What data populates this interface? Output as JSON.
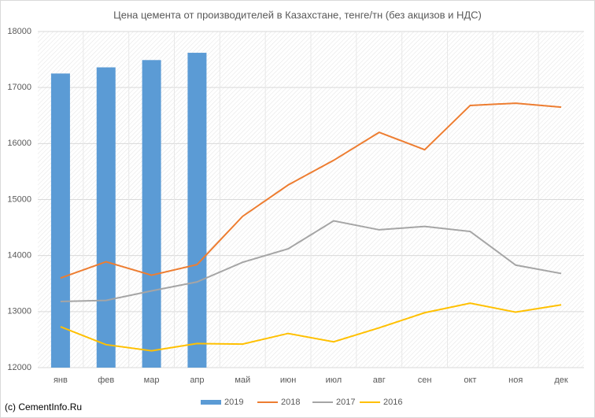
{
  "chart_data": {
    "type": "combo",
    "title": "Цена цемента от производителей в Казахстане, тенге/тн (без акцизов и НДС)",
    "annotation": "(c) CementInfo.Ru",
    "categories": [
      "янв",
      "фев",
      "мар",
      "апр",
      "май",
      "июн",
      "июл",
      "авг",
      "сен",
      "окт",
      "ноя",
      "дек"
    ],
    "series": [
      {
        "name": "2019",
        "type": "bar",
        "color": "#5b9bd5",
        "values": [
          17250,
          17360,
          17490,
          17620,
          null,
          null,
          null,
          null,
          null,
          null,
          null,
          null
        ]
      },
      {
        "name": "2018",
        "type": "line",
        "color": "#ed7d31",
        "values": [
          13600,
          13890,
          13650,
          13840,
          14700,
          15260,
          15700,
          16200,
          15890,
          16680,
          16720,
          16650
        ]
      },
      {
        "name": "2017",
        "type": "line",
        "color": "#a5a5a5",
        "values": [
          13180,
          13200,
          13370,
          13530,
          13880,
          14120,
          14620,
          14460,
          14520,
          14430,
          13830,
          13680
        ]
      },
      {
        "name": "2016",
        "type": "line",
        "color": "#ffc000",
        "values": [
          12730,
          12410,
          12300,
          12430,
          12420,
          12610,
          12460,
          12710,
          12980,
          13150,
          12990,
          13120
        ]
      }
    ],
    "ylim": [
      12000,
      18000
    ],
    "yticks": [
      12000,
      13000,
      14000,
      15000,
      16000,
      17000,
      18000
    ],
    "grid": true,
    "legend": "bottom"
  }
}
